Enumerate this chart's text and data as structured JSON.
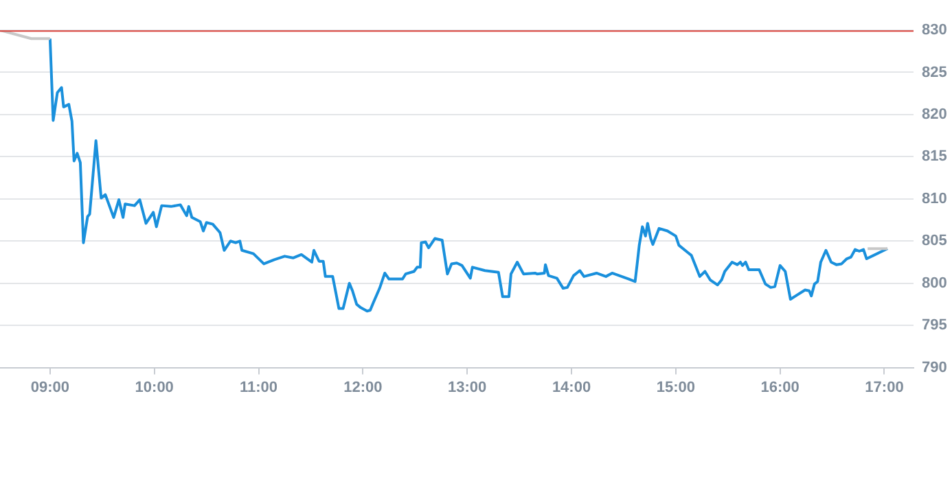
{
  "chart_data": {
    "type": "line",
    "xlim": [
      8.52,
      17.28
    ],
    "ylim": [
      790,
      830
    ],
    "xticks": [
      {
        "value": 9,
        "label": "09:00"
      },
      {
        "value": 10,
        "label": "10:00"
      },
      {
        "value": 11,
        "label": "11:00"
      },
      {
        "value": 12,
        "label": "12:00"
      },
      {
        "value": 13,
        "label": "13:00"
      },
      {
        "value": 14,
        "label": "14:00"
      },
      {
        "value": 15,
        "label": "15:00"
      },
      {
        "value": 16,
        "label": "16:00"
      },
      {
        "value": 17,
        "label": "17:00"
      }
    ],
    "yticks": [
      790,
      795,
      800,
      805,
      810,
      815,
      820,
      825,
      830
    ],
    "grid": "y",
    "marker": "none",
    "line_style": "solid",
    "ref_lines": [
      {
        "axis": "y",
        "value": 829.9,
        "color": "#d9413a"
      }
    ],
    "series": [
      {
        "color": "#c8c8c8",
        "x": [
          8.52,
          8.82,
          9.0
        ],
        "values": [
          830.0,
          829.0,
          829.0
        ]
      },
      {
        "color": "#c8c8c8",
        "x": [
          16.84,
          17.03
        ],
        "values": [
          804.1,
          804.1
        ]
      },
      {
        "color": "#1a90dc",
        "x": [
          9.0,
          9.03,
          9.07,
          9.11,
          9.13,
          9.18,
          9.21,
          9.23,
          9.26,
          9.29,
          9.32,
          9.36,
          9.38,
          9.44,
          9.49,
          9.53,
          9.61,
          9.66,
          9.7,
          9.72,
          9.81,
          9.86,
          9.92,
          9.99,
          10.02,
          10.07,
          10.16,
          10.25,
          10.31,
          10.33,
          10.36,
          10.44,
          10.47,
          10.5,
          10.56,
          10.63,
          10.67,
          10.73,
          10.78,
          10.82,
          10.84,
          10.95,
          11.05,
          11.15,
          11.25,
          11.33,
          11.41,
          11.51,
          11.53,
          11.58,
          11.62,
          11.64,
          11.71,
          11.74,
          11.77,
          11.81,
          11.87,
          11.9,
          11.94,
          11.98,
          12.04,
          12.07,
          12.1,
          12.16,
          12.21,
          12.25,
          12.38,
          12.41,
          12.49,
          12.52,
          12.55,
          12.56,
          12.6,
          12.63,
          12.69,
          12.76,
          12.81,
          12.85,
          12.9,
          12.95,
          13.03,
          13.05,
          13.17,
          13.3,
          13.34,
          13.4,
          13.42,
          13.48,
          13.54,
          13.65,
          13.67,
          13.74,
          13.75,
          13.78,
          13.86,
          13.92,
          13.96,
          14.02,
          14.08,
          14.12,
          14.24,
          14.33,
          14.39,
          14.55,
          14.61,
          14.63,
          14.65,
          14.68,
          14.71,
          14.73,
          14.76,
          14.78,
          14.84,
          14.92,
          15.0,
          15.03,
          15.12,
          15.15,
          15.23,
          15.28,
          15.33,
          15.4,
          15.44,
          15.47,
          15.54,
          15.59,
          15.62,
          15.64,
          15.67,
          15.7,
          15.8,
          15.86,
          15.91,
          15.95,
          16.0,
          16.05,
          16.1,
          16.15,
          16.24,
          16.28,
          16.3,
          16.33,
          16.36,
          16.39,
          16.44,
          16.49,
          16.54,
          16.59,
          16.64,
          16.68,
          16.72,
          16.76,
          16.8,
          16.83,
          17.03
        ],
        "values": [
          829.0,
          819.3,
          822.6,
          823.2,
          820.9,
          821.2,
          819.2,
          814.5,
          815.4,
          814.3,
          804.8,
          807.9,
          808.2,
          816.9,
          810.1,
          810.5,
          807.8,
          809.9,
          807.8,
          809.4,
          809.2,
          809.9,
          807.1,
          808.4,
          806.7,
          809.2,
          809.1,
          809.3,
          808.0,
          809.1,
          807.8,
          807.3,
          806.2,
          807.2,
          807.0,
          806.0,
          803.9,
          805.0,
          804.8,
          805.0,
          803.9,
          803.5,
          802.3,
          802.8,
          803.2,
          803.0,
          803.4,
          802.5,
          803.9,
          802.6,
          802.6,
          800.8,
          800.8,
          798.9,
          797.0,
          797.0,
          800.0,
          799.1,
          797.5,
          797.1,
          796.7,
          796.8,
          797.7,
          799.4,
          801.2,
          800.5,
          800.5,
          801.1,
          801.4,
          801.9,
          801.9,
          804.8,
          804.9,
          804.2,
          805.3,
          805.1,
          801.1,
          802.3,
          802.4,
          802.1,
          800.6,
          801.9,
          801.5,
          801.3,
          798.4,
          798.4,
          801.1,
          802.5,
          801.1,
          801.2,
          801.1,
          801.2,
          802.2,
          800.9,
          800.6,
          799.4,
          799.5,
          800.9,
          801.5,
          800.8,
          801.2,
          800.8,
          801.2,
          800.5,
          800.2,
          802.3,
          804.5,
          806.7,
          805.6,
          807.1,
          805.3,
          804.6,
          806.5,
          806.2,
          805.6,
          804.5,
          803.6,
          803.3,
          800.8,
          801.4,
          800.4,
          799.8,
          800.4,
          801.4,
          802.5,
          802.2,
          802.5,
          802.1,
          802.5,
          801.6,
          801.6,
          799.9,
          799.5,
          799.6,
          802.1,
          801.4,
          798.1,
          798.5,
          799.2,
          799.1,
          798.5,
          799.9,
          800.2,
          802.5,
          803.9,
          802.5,
          802.2,
          802.3,
          802.9,
          803.1,
          804.0,
          803.8,
          804.0,
          802.9,
          804.1
        ]
      }
    ]
  }
}
